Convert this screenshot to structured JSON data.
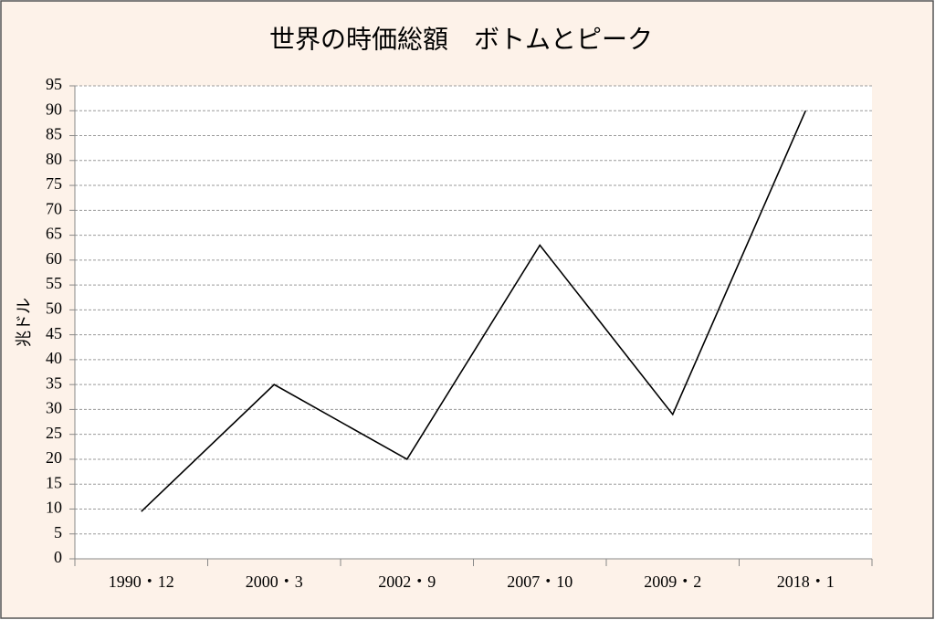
{
  "chart_data": {
    "type": "line",
    "title": "世界の時価総額　ボトムとピーク",
    "y_label": "兆ドル",
    "categories": [
      "1990・12",
      "2000・3",
      "2002・9",
      "2007・10",
      "2009・2",
      "2018・1"
    ],
    "values": [
      9.5,
      35,
      20,
      63,
      29,
      90
    ],
    "color": "#000000",
    "ylim": [
      0,
      95
    ],
    "yticks": [
      0,
      5,
      10,
      15,
      20,
      25,
      30,
      35,
      40,
      45,
      50,
      55,
      60,
      65,
      70,
      75,
      80,
      85,
      90,
      95
    ],
    "grid": true
  }
}
